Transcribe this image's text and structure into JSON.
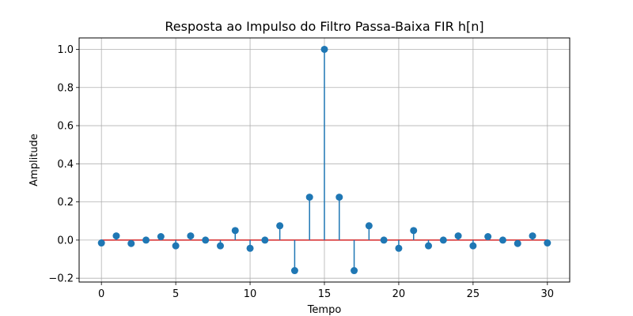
{
  "chart_data": {
    "type": "stem",
    "title": "Resposta ao Impulso do Filtro Passa-Baixa FIR h[n]",
    "xlabel": "Tempo",
    "ylabel": "Amplitude",
    "xlim": [
      -1.5,
      31.5
    ],
    "ylim": [
      -0.22,
      1.06
    ],
    "xticks": [
      0,
      5,
      10,
      15,
      20,
      25,
      30
    ],
    "xtick_labels": [
      "0",
      "5",
      "10",
      "15",
      "20",
      "25",
      "30"
    ],
    "yticks": [
      -0.2,
      0.0,
      0.2,
      0.4,
      0.6,
      0.8,
      1.0
    ],
    "ytick_labels": [
      "−0.2",
      "0.0",
      "0.2",
      "0.4",
      "0.6",
      "0.8",
      "1.0"
    ],
    "grid": true,
    "stem_color": "#1f77b4",
    "baseline_color": "#d62728",
    "x": [
      0,
      1,
      2,
      3,
      4,
      5,
      6,
      7,
      8,
      9,
      10,
      11,
      12,
      13,
      14,
      15,
      16,
      17,
      18,
      19,
      20,
      21,
      22,
      23,
      24,
      25,
      26,
      27,
      28,
      29,
      30
    ],
    "values": [
      -0.015,
      0.022,
      -0.018,
      0.0,
      0.018,
      -0.03,
      0.022,
      0.0,
      -0.03,
      0.05,
      -0.043,
      0.0,
      0.075,
      -0.16,
      0.225,
      1.0,
      0.225,
      -0.16,
      0.075,
      0.0,
      -0.043,
      0.05,
      -0.03,
      0.0,
      0.022,
      -0.03,
      0.018,
      0.0,
      -0.018,
      0.022,
      -0.015
    ]
  }
}
